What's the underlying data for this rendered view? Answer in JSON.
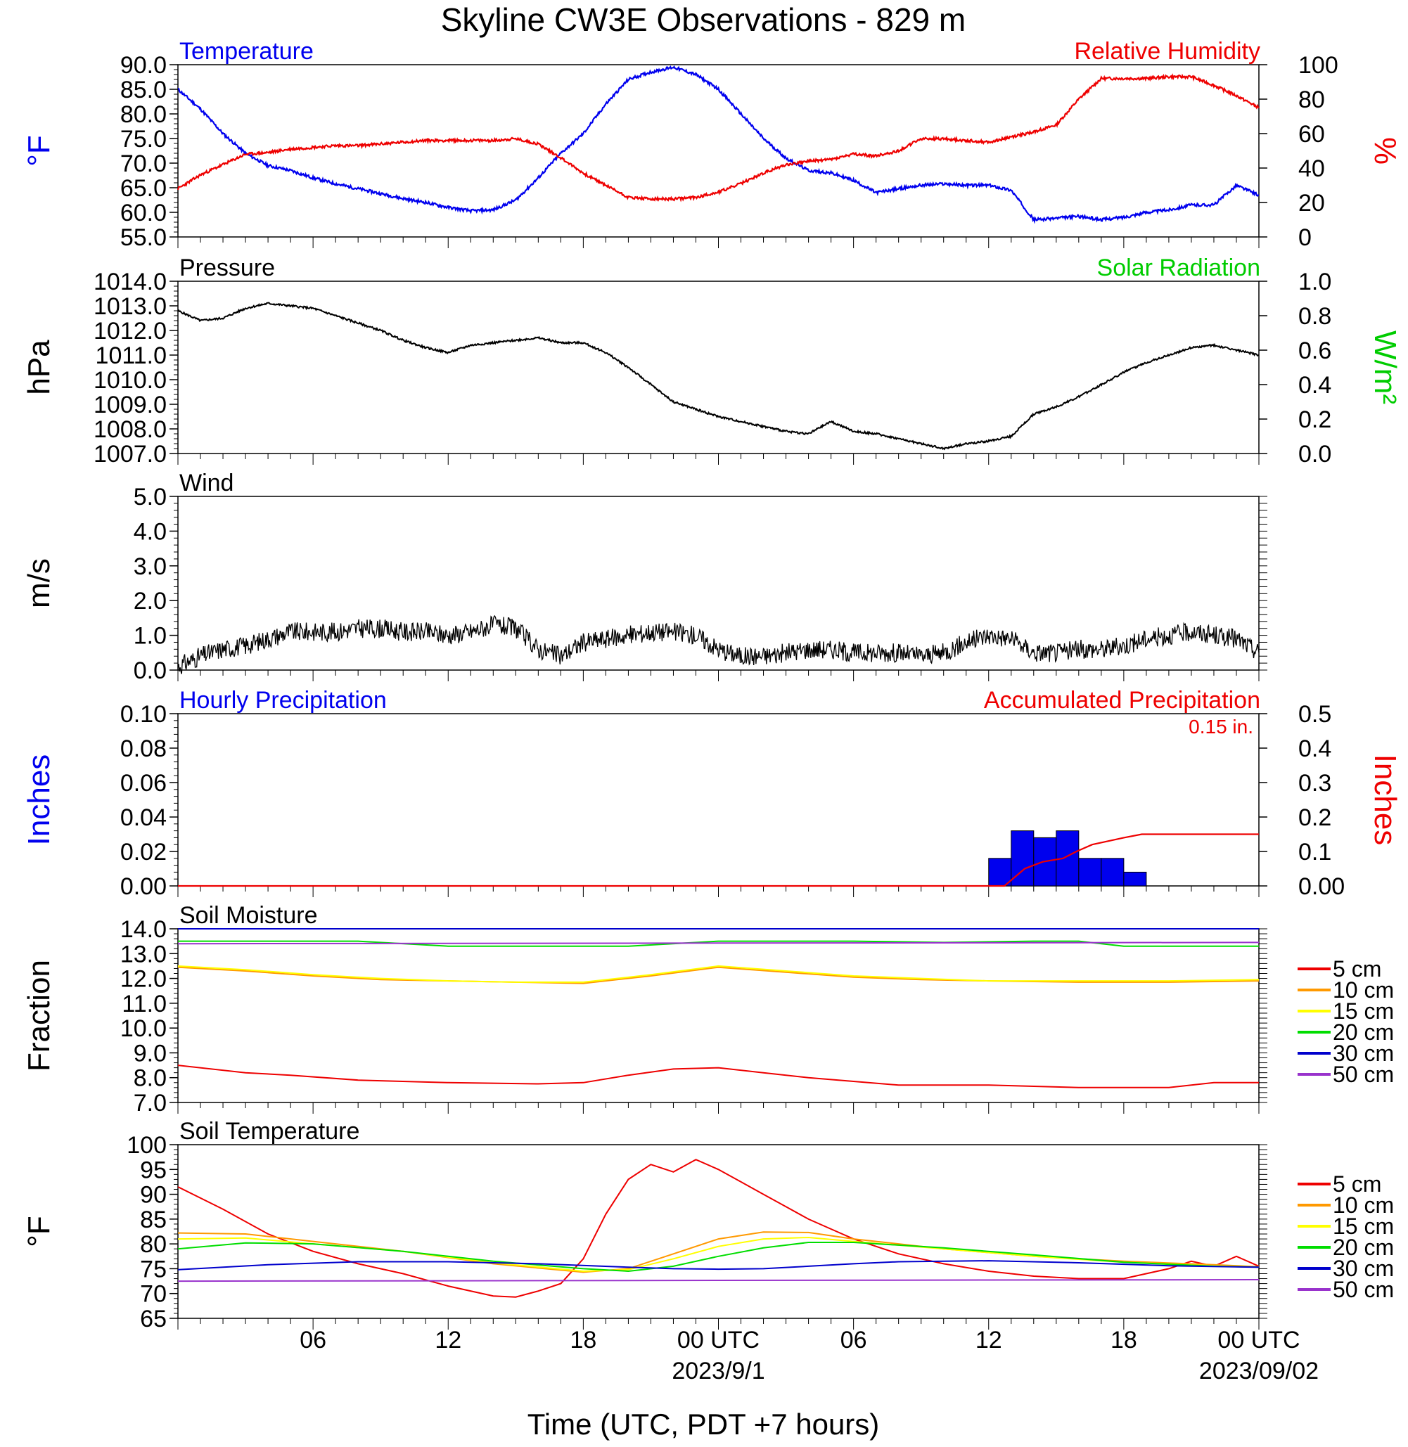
{
  "title": "Skyline CW3E Observations - 829 m",
  "x_axis": {
    "label": "Time (UTC, PDT +7 hours)",
    "ticks": [
      {
        "hour": 6,
        "label": "06"
      },
      {
        "hour": 12,
        "label": "12"
      },
      {
        "hour": 18,
        "label": "18"
      },
      {
        "hour": 24,
        "label": "00 UTC"
      },
      {
        "hour": 30,
        "label": "06"
      },
      {
        "hour": 36,
        "label": "12"
      },
      {
        "hour": 42,
        "label": "18"
      },
      {
        "hour": 48,
        "label": "00 UTC"
      }
    ],
    "dates": [
      {
        "hour": 24,
        "label": "2023/9/1"
      },
      {
        "hour": 48,
        "label": "2023/09/02"
      }
    ],
    "range_hours": [
      0,
      48
    ]
  },
  "colors": {
    "blue": "#0000ee",
    "red": "#ee0000",
    "green": "#00cc00",
    "black": "#000000",
    "orange": "#ff9900",
    "yellow": "#ffff00",
    "soil_green": "#00dd00",
    "soil_blue": "#0000cc",
    "purple": "#9933cc"
  },
  "soil_legend": [
    "5 cm",
    "10 cm",
    "15 cm",
    "20 cm",
    "30 cm",
    "50 cm"
  ],
  "chart_data": [
    {
      "type": "line",
      "title_left": "Temperature",
      "title_right": "Relative Humidity",
      "ylabel_left": "°F",
      "ylabel_right": "%",
      "ylim_left": [
        55,
        90
      ],
      "ylim_right": [
        0,
        100
      ],
      "yticks_left": [
        "55.0",
        "60.0",
        "65.0",
        "70.0",
        "75.0",
        "80.0",
        "85.0",
        "90.0"
      ],
      "yticks_right": [
        "0",
        "20",
        "40",
        "60",
        "80",
        "100"
      ],
      "series": [
        {
          "axis": "left",
          "x": [
            0,
            1,
            2,
            3,
            4,
            5,
            6,
            7,
            8,
            9,
            10,
            11,
            12,
            13,
            14,
            15,
            16,
            17,
            18,
            19,
            20,
            21,
            22,
            23,
            24,
            25,
            26,
            27,
            28,
            29,
            30,
            31,
            32,
            33,
            34,
            35,
            36,
            37,
            38,
            39,
            40,
            41,
            42,
            43,
            44,
            45,
            46,
            47,
            48
          ],
          "y": [
            85,
            81,
            76,
            72,
            69.5,
            68.5,
            67,
            65.8,
            64.8,
            63.8,
            62.8,
            62,
            61,
            60.3,
            60.5,
            62.5,
            67,
            72,
            76,
            82,
            87,
            88.5,
            89.5,
            88,
            85,
            80,
            75,
            71,
            68.5,
            68,
            66.5,
            64,
            64.8,
            65.5,
            65.8,
            65.5,
            65.5,
            64.5,
            58.5,
            58.8,
            59.2,
            58.5,
            59,
            60,
            60.5,
            61.5,
            61.5,
            65.5,
            63.5
          ]
        },
        {
          "axis": "right",
          "x": [
            0,
            1,
            2,
            3,
            4,
            5,
            6,
            7,
            8,
            9,
            10,
            11,
            12,
            13,
            14,
            15,
            16,
            17,
            18,
            19,
            20,
            21,
            22,
            23,
            24,
            25,
            26,
            27,
            28,
            29,
            30,
            31,
            32,
            33,
            34,
            35,
            36,
            37,
            38,
            39,
            40,
            41,
            42,
            43,
            44,
            45,
            46,
            47,
            48
          ],
          "y": [
            28,
            36,
            42,
            48,
            49,
            51,
            52,
            53,
            53,
            54,
            55,
            56,
            56,
            56,
            56,
            57,
            54,
            46,
            37,
            30,
            23,
            22,
            22,
            23,
            26,
            31,
            37,
            42,
            44,
            45,
            48,
            47,
            50,
            57,
            57,
            56,
            55,
            58,
            61,
            65,
            80,
            92,
            92,
            92,
            93,
            93,
            88,
            82,
            75
          ]
        }
      ]
    },
    {
      "type": "line",
      "title_left": "Pressure",
      "title_right": "Solar Radiation",
      "ylabel_left": "hPa",
      "ylabel_right": "W/m²",
      "ylim_left": [
        1007,
        1014
      ],
      "ylim_right": [
        0,
        1
      ],
      "yticks_left": [
        "1007.0",
        "1008.0",
        "1009.0",
        "1010.0",
        "1011.0",
        "1012.0",
        "1013.0",
        "1014.0"
      ],
      "yticks_right": [
        "0.0",
        "0.2",
        "0.4",
        "0.6",
        "0.8",
        "1.0"
      ],
      "series": [
        {
          "axis": "left",
          "x": [
            0,
            1,
            2,
            3,
            4,
            5,
            6,
            7,
            8,
            9,
            10,
            11,
            12,
            13,
            14,
            15,
            16,
            17,
            18,
            19,
            20,
            21,
            22,
            23,
            24,
            25,
            26,
            27,
            28,
            29,
            30,
            31,
            32,
            33,
            34,
            35,
            36,
            37,
            38,
            39,
            40,
            41,
            42,
            43,
            44,
            45,
            46,
            47,
            48
          ],
          "y": [
            1012.8,
            1012.4,
            1012.5,
            1012.9,
            1013.1,
            1013,
            1012.9,
            1012.6,
            1012.3,
            1012,
            1011.6,
            1011.3,
            1011.1,
            1011.4,
            1011.5,
            1011.6,
            1011.7,
            1011.5,
            1011.5,
            1011.1,
            1010.5,
            1009.8,
            1009.1,
            1008.8,
            1008.5,
            1008.3,
            1008.1,
            1007.9,
            1007.8,
            1008.3,
            1007.9,
            1007.8,
            1007.6,
            1007.4,
            1007.2,
            1007.4,
            1007.5,
            1007.7,
            1008.6,
            1008.9,
            1009.3,
            1009.8,
            1010.3,
            1010.7,
            1011,
            1011.3,
            1011.4,
            1011.2,
            1011
          ]
        }
      ]
    },
    {
      "type": "line",
      "title_left": "Wind",
      "ylabel_left": "m/s",
      "ylim_left": [
        0,
        5
      ],
      "yticks_left": [
        "0.0",
        "1.0",
        "2.0",
        "3.0",
        "4.0",
        "5.0"
      ],
      "series": [
        {
          "axis": "left",
          "x": [
            0,
            1,
            2,
            3,
            4,
            5,
            6,
            7,
            8,
            9,
            10,
            11,
            12,
            13,
            14,
            15,
            16,
            17,
            18,
            19,
            20,
            21,
            22,
            23,
            24,
            25,
            26,
            27,
            28,
            29,
            30,
            31,
            32,
            33,
            34,
            35,
            36,
            37,
            38,
            39,
            40,
            41,
            42,
            43,
            44,
            45,
            46,
            47,
            48
          ],
          "y": [
            0.1,
            0.4,
            0.6,
            0.7,
            0.9,
            1.1,
            1.1,
            1.1,
            1.2,
            1.2,
            1.1,
            1.1,
            1.0,
            1.1,
            1.3,
            1.2,
            0.6,
            0.4,
            0.8,
            0.9,
            1.0,
            1.1,
            1.1,
            1.0,
            0.6,
            0.4,
            0.4,
            0.5,
            0.6,
            0.6,
            0.5,
            0.5,
            0.5,
            0.4,
            0.5,
            0.8,
            1.0,
            0.9,
            0.5,
            0.5,
            0.6,
            0.6,
            0.7,
            0.9,
            1.0,
            1.1,
            1.0,
            0.9,
            0.5
          ]
        }
      ]
    },
    {
      "type": "bar",
      "title_left": "Hourly Precipitation",
      "title_right": "Accumulated Precipitation",
      "annotation": "0.15 in.",
      "ylabel_left": "Inches",
      "ylabel_right": "Inches",
      "ylim_left": [
        0,
        0.1
      ],
      "ylim_right": [
        0,
        0.5
      ],
      "yticks_left": [
        "0.00",
        "0.02",
        "0.04",
        "0.06",
        "0.08",
        "0.10"
      ],
      "yticks_right": [
        "0.00",
        "0.1",
        "0.2",
        "0.3",
        "0.4",
        "0.5"
      ],
      "bars": {
        "x": [
          36,
          37,
          38,
          39,
          40,
          41,
          42
        ],
        "values": [
          0.016,
          0.032,
          0.028,
          0.032,
          0.016,
          0.016,
          0.008
        ]
      },
      "accumulated": {
        "x": [
          0,
          36.7,
          37.6,
          38.4,
          39.3,
          39.9,
          40.6,
          41.3,
          42,
          42.8,
          48
        ],
        "y": [
          0,
          0,
          0.05,
          0.07,
          0.08,
          0.1,
          0.12,
          0.13,
          0.14,
          0.15,
          0.15
        ]
      }
    },
    {
      "type": "line",
      "title_left": "Soil Moisture",
      "ylabel_left": "Fraction",
      "ylim_left": [
        7,
        14
      ],
      "yticks_left": [
        "7.0",
        "8.0",
        "9.0",
        "10.0",
        "11.0",
        "12.0",
        "13.0",
        "14.0"
      ],
      "series": [
        {
          "name": "5 cm",
          "x": [
            0,
            3,
            5,
            8,
            12,
            16,
            18,
            20,
            22,
            24,
            26,
            28,
            30,
            32,
            36,
            40,
            44,
            46,
            48
          ],
          "y": [
            8.5,
            8.2,
            8.1,
            7.9,
            7.8,
            7.75,
            7.8,
            8.1,
            8.35,
            8.4,
            8.2,
            8.0,
            7.85,
            7.7,
            7.7,
            7.6,
            7.6,
            7.8,
            7.8
          ]
        },
        {
          "name": "10 cm",
          "x": [
            0,
            3,
            6,
            9,
            12,
            15,
            18,
            21,
            24,
            27,
            30,
            33,
            36,
            40,
            44,
            48
          ],
          "y": [
            12.45,
            12.3,
            12.1,
            11.95,
            11.9,
            11.85,
            11.8,
            12.1,
            12.45,
            12.25,
            12.05,
            11.95,
            11.9,
            11.85,
            11.85,
            11.9
          ]
        },
        {
          "name": "15 cm",
          "x": [
            0,
            3,
            6,
            9,
            12,
            15,
            18,
            21,
            24,
            27,
            30,
            33,
            36,
            40,
            44,
            48
          ],
          "y": [
            12.5,
            12.35,
            12.15,
            12.0,
            11.9,
            11.85,
            11.85,
            12.15,
            12.5,
            12.3,
            12.1,
            12.0,
            11.9,
            11.9,
            11.9,
            11.95
          ]
        },
        {
          "name": "20 cm",
          "x": [
            0,
            8,
            12,
            20,
            24,
            30,
            34,
            38,
            40,
            42,
            48
          ],
          "y": [
            13.5,
            13.5,
            13.3,
            13.3,
            13.5,
            13.5,
            13.45,
            13.5,
            13.5,
            13.3,
            13.3
          ]
        },
        {
          "name": "30 cm",
          "x": [
            0,
            48
          ],
          "y": [
            14.0,
            14.0
          ]
        },
        {
          "name": "50 cm",
          "x": [
            0,
            48
          ],
          "y": [
            13.4,
            13.45
          ]
        }
      ]
    },
    {
      "type": "line",
      "title_left": "Soil Temperature",
      "ylabel_left": "°F",
      "ylim_left": [
        65,
        100
      ],
      "yticks_left": [
        "65",
        "70",
        "75",
        "80",
        "85",
        "90",
        "95",
        "100"
      ],
      "series": [
        {
          "name": "5 cm",
          "x": [
            0,
            2,
            4,
            6,
            8,
            10,
            12,
            14,
            15,
            16,
            17,
            18,
            19,
            20,
            21,
            22,
            23,
            24,
            25,
            26,
            27,
            28,
            29,
            30,
            32,
            34,
            36,
            38,
            40,
            42,
            44,
            45,
            46,
            47,
            48
          ],
          "y": [
            91.5,
            87,
            82,
            78.5,
            76,
            74,
            71.5,
            69.5,
            69.3,
            70.5,
            72,
            77,
            86,
            93,
            96,
            94.5,
            97,
            95,
            92.5,
            90,
            87.5,
            85,
            83,
            81,
            78,
            76,
            74.5,
            73.5,
            73,
            73,
            75,
            76.5,
            75.5,
            77.5,
            75.5
          ]
        },
        {
          "name": "10 cm",
          "x": [
            0,
            3,
            6,
            10,
            14,
            18,
            20,
            22,
            24,
            26,
            28,
            30,
            34,
            38,
            42,
            46,
            48
          ],
          "y": [
            82.2,
            82,
            80.5,
            78.5,
            76,
            74.3,
            75,
            78,
            81,
            82.4,
            82.3,
            81,
            79,
            77.5,
            76.5,
            75.8,
            75.4
          ]
        },
        {
          "name": "15 cm",
          "x": [
            0,
            3,
            6,
            10,
            14,
            18,
            20,
            22,
            24,
            26,
            28,
            30,
            34,
            38,
            42,
            46,
            48
          ],
          "y": [
            81,
            81.2,
            80,
            78.5,
            76.2,
            74.5,
            74.8,
            77,
            79.5,
            81,
            81.3,
            80.5,
            79,
            77.5,
            76.3,
            75.6,
            75.3
          ]
        },
        {
          "name": "20 cm",
          "x": [
            0,
            3,
            6,
            10,
            14,
            18,
            20,
            22,
            24,
            26,
            28,
            30,
            34,
            38,
            42,
            46,
            48
          ],
          "y": [
            79,
            80.2,
            80,
            78.5,
            76.5,
            75,
            74.5,
            75.5,
            77.5,
            79.2,
            80.3,
            80.3,
            79.2,
            77.8,
            76.3,
            75.5,
            75.3
          ]
        },
        {
          "name": "30 cm",
          "x": [
            0,
            4,
            8,
            12,
            16,
            20,
            22,
            24,
            26,
            28,
            30,
            32,
            36,
            40,
            44,
            48
          ],
          "y": [
            74.8,
            75.8,
            76.4,
            76.4,
            76,
            75.3,
            75,
            74.9,
            75,
            75.5,
            76,
            76.4,
            76.6,
            76.2,
            75.6,
            75.3
          ]
        },
        {
          "name": "50 cm",
          "x": [
            0,
            48
          ],
          "y": [
            72.5,
            72.8
          ]
        }
      ]
    }
  ]
}
